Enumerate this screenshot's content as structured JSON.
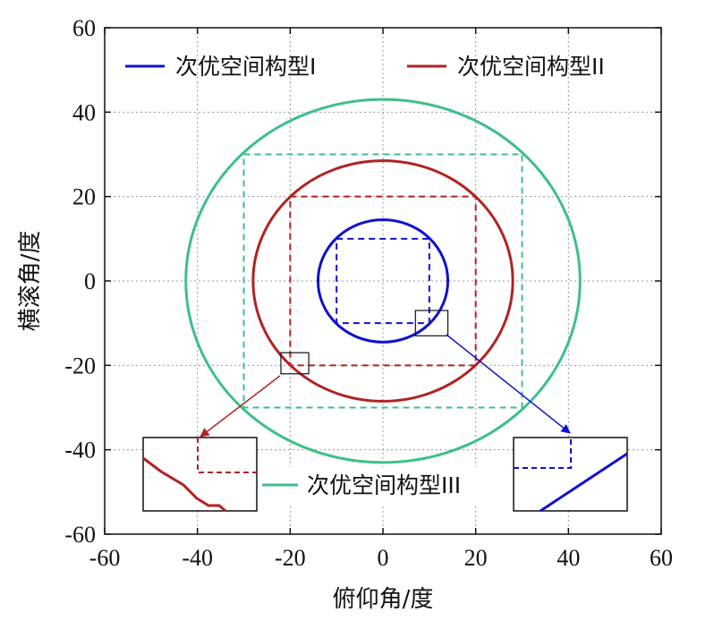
{
  "chart_data": {
    "type": "line",
    "xlabel": "俯仰角/度",
    "ylabel": "横滚角/度",
    "xlim": [
      -60,
      60
    ],
    "ylim": [
      -60,
      60
    ],
    "xticks": [
      -60,
      -40,
      -20,
      0,
      20,
      40,
      60
    ],
    "yticks": [
      -60,
      -40,
      -20,
      0,
      20,
      40,
      60
    ],
    "grid": true,
    "legend_position": "top",
    "series": [
      {
        "name": "次优空间构型I",
        "color": "#1010d0",
        "shape": "ellipse",
        "center": [
          0,
          0
        ],
        "x_radius": 14,
        "y_radius": 14.5,
        "box": {
          "x": [
            -10,
            10
          ],
          "y": [
            -10,
            10
          ],
          "style": "dashed"
        }
      },
      {
        "name": "次优空间构型II",
        "color": "#b22222",
        "shape": "ellipse",
        "center": [
          0,
          0
        ],
        "x_radius": 28,
        "y_radius": 28.5,
        "box": {
          "x": [
            -20,
            20
          ],
          "y": [
            -20,
            20
          ],
          "style": "dashed"
        }
      },
      {
        "name": "次优空间构型III",
        "color": "#3dbf8a",
        "shape": "ellipse",
        "center": [
          0,
          0
        ],
        "x_radius": 42.5,
        "y_radius": 43,
        "box": {
          "x": [
            -30,
            30
          ],
          "y": [
            -30,
            30
          ],
          "style": "dashed"
        }
      }
    ],
    "zoom_regions": [
      {
        "series": "次优空间构型II",
        "x": [
          -22,
          -16
        ],
        "y": [
          -22,
          -17
        ],
        "arrow_color": "#b22222"
      },
      {
        "series": "次优空间构型I",
        "x": [
          7,
          14
        ],
        "y": [
          -13,
          -7
        ],
        "arrow_color": "#1010d0"
      }
    ]
  }
}
